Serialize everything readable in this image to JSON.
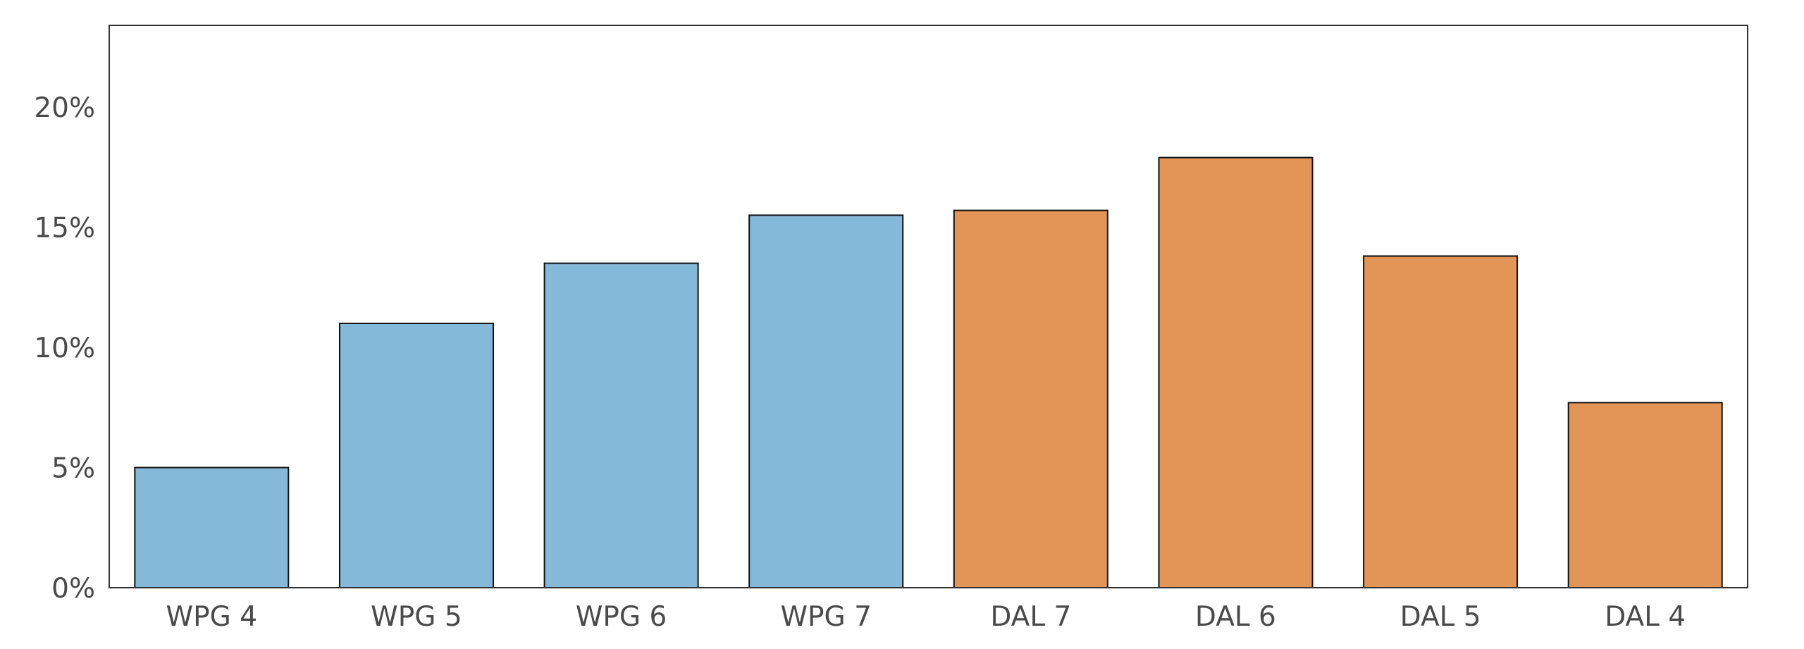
{
  "chart_data": {
    "type": "bar",
    "title": "",
    "xlabel": "",
    "ylabel": "",
    "categories": [
      "WPG 4",
      "WPG 5",
      "WPG 6",
      "WPG 7",
      "DAL 7",
      "DAL 6",
      "DAL 5",
      "DAL 4"
    ],
    "values": [
      5.0,
      11.0,
      13.5,
      15.5,
      15.7,
      17.9,
      13.8,
      7.7
    ],
    "bar_colors": [
      "#85b9da",
      "#85b9da",
      "#85b9da",
      "#85b9da",
      "#e29557",
      "#e29557",
      "#e29557",
      "#e29557"
    ],
    "ylim": [
      0,
      23.4
    ],
    "yticks": [
      0,
      5,
      10,
      15,
      20
    ],
    "ytick_labels": [
      "0%",
      "5%",
      "10%",
      "15%",
      "20%"
    ],
    "grid": false,
    "legend": "none"
  }
}
